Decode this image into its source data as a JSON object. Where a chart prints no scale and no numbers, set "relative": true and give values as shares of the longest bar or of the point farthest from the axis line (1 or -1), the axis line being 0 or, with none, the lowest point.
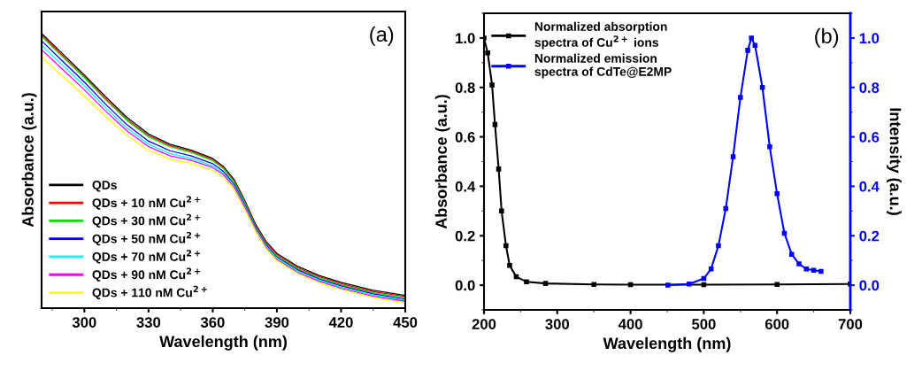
{
  "chart_data": [
    {
      "type": "line",
      "xlabel": "Wavelength (nm)",
      "ylabel": "Absorbance (a.u.)",
      "relative": true,
      "tick_labels": "x",
      "legend": "lower left",
      "xlim": [
        280,
        450
      ],
      "xticks": [
        300,
        330,
        360,
        390,
        420,
        450
      ],
      "x": [
        280,
        290,
        300,
        310,
        320,
        330,
        340,
        350,
        360,
        365,
        370,
        375,
        380,
        385,
        390,
        400,
        410,
        420,
        435,
        450
      ],
      "annotations": [
        "(a)"
      ],
      "series": [
        {
          "name": "QDs",
          "color": "#000000",
          "values": [
            1.0,
            0.925,
            0.849,
            0.769,
            0.694,
            0.634,
            0.597,
            0.575,
            0.545,
            0.516,
            0.468,
            0.392,
            0.306,
            0.242,
            0.199,
            0.151,
            0.118,
            0.094,
            0.065,
            0.046
          ]
        },
        {
          "name": "QDs + 10 nM Cu$^{2+}$",
          "color": "#ff0000",
          "values": [
            0.994,
            0.918,
            0.843,
            0.762,
            0.687,
            0.628,
            0.592,
            0.571,
            0.541,
            0.512,
            0.463,
            0.388,
            0.302,
            0.238,
            0.195,
            0.146,
            0.114,
            0.089,
            0.06,
            0.042
          ]
        },
        {
          "name": "QDs + 30 nM Cu$^{2+}$",
          "color": "#00e000",
          "values": [
            0.989,
            0.914,
            0.839,
            0.758,
            0.683,
            0.624,
            0.588,
            0.567,
            0.537,
            0.508,
            0.459,
            0.384,
            0.298,
            0.233,
            0.19,
            0.142,
            0.11,
            0.085,
            0.056,
            0.038
          ]
        },
        {
          "name": "QDs + 50 nM Cu$^{2+}$",
          "color": "#0000ff",
          "values": [
            0.973,
            0.898,
            0.823,
            0.742,
            0.667,
            0.608,
            0.573,
            0.554,
            0.526,
            0.498,
            0.451,
            0.376,
            0.294,
            0.229,
            0.186,
            0.138,
            0.105,
            0.081,
            0.052,
            0.033
          ]
        },
        {
          "name": "QDs + 70 nM Cu$^{2+}$",
          "color": "#00ffff",
          "values": [
            0.957,
            0.883,
            0.809,
            0.729,
            0.655,
            0.597,
            0.563,
            0.545,
            0.518,
            0.491,
            0.445,
            0.372,
            0.289,
            0.225,
            0.182,
            0.133,
            0.101,
            0.076,
            0.047,
            0.029
          ]
        },
        {
          "name": "QDs + 90 nM Cu$^{2+}$",
          "color": "#ff00ff",
          "values": [
            0.941,
            0.868,
            0.795,
            0.717,
            0.645,
            0.588,
            0.555,
            0.538,
            0.512,
            0.486,
            0.441,
            0.368,
            0.285,
            0.22,
            0.177,
            0.129,
            0.097,
            0.072,
            0.043,
            0.025
          ]
        },
        {
          "name": "QDs + 110 nM Cu$^{2+}$",
          "color": "#ffff00",
          "values": [
            0.914,
            0.843,
            0.772,
            0.698,
            0.629,
            0.575,
            0.543,
            0.527,
            0.502,
            0.476,
            0.432,
            0.36,
            0.281,
            0.216,
            0.173,
            0.125,
            0.092,
            0.068,
            0.039,
            0.02
          ]
        }
      ]
    },
    {
      "type": "line",
      "xlabel": "Wavelength (nm)",
      "ylabel": "Absorbance (a.u.)",
      "y2label": "Intensity (a.u.)",
      "legend": "upper left",
      "marker": "square",
      "xlim": [
        200,
        700
      ],
      "xticks": [
        200,
        300,
        400,
        500,
        600,
        700
      ],
      "ylim": [
        -0.1,
        1.1
      ],
      "yticks": [
        {
          "value": 0,
          "label": "0.0"
        },
        0.2,
        0.4,
        0.6,
        0.8,
        {
          "value": 1,
          "label": "1.0"
        }
      ],
      "y2lim": [
        -0.1,
        1.1
      ],
      "y2ticks": [
        {
          "value": 0,
          "label": "0.0"
        },
        0.2,
        0.4,
        0.6,
        0.8,
        {
          "value": 1,
          "label": "1.0"
        }
      ],
      "annotations": [
        "(b)"
      ],
      "series": [
        {
          "name": "Normalized absorption\nspectra of Cu$^{2+}$ ions",
          "color": "#000000",
          "x": [
            200,
            205,
            211,
            215,
            220,
            224,
            230,
            235,
            244,
            258,
            284,
            350,
            400,
            500,
            600,
            700
          ],
          "values": [
            1.0,
            0.94,
            0.81,
            0.65,
            0.47,
            0.3,
            0.16,
            0.08,
            0.034,
            0.014,
            0.007,
            0.003,
            0.002,
            0.002,
            0.003,
            0.005
          ]
        },
        {
          "name": "Normalized emission\nspectra of CdTe@E2MP",
          "color": "#0000ff",
          "axis": "y2",
          "x": [
            451,
            480,
            500,
            510,
            520,
            530,
            540,
            550,
            560,
            565,
            570,
            580,
            590,
            600,
            610,
            620,
            630,
            640,
            650,
            660
          ],
          "values": [
            0.0,
            0.005,
            0.027,
            0.066,
            0.16,
            0.31,
            0.52,
            0.76,
            0.95,
            1.0,
            0.97,
            0.8,
            0.56,
            0.37,
            0.21,
            0.125,
            0.086,
            0.066,
            0.06,
            0.056
          ]
        }
      ]
    }
  ]
}
